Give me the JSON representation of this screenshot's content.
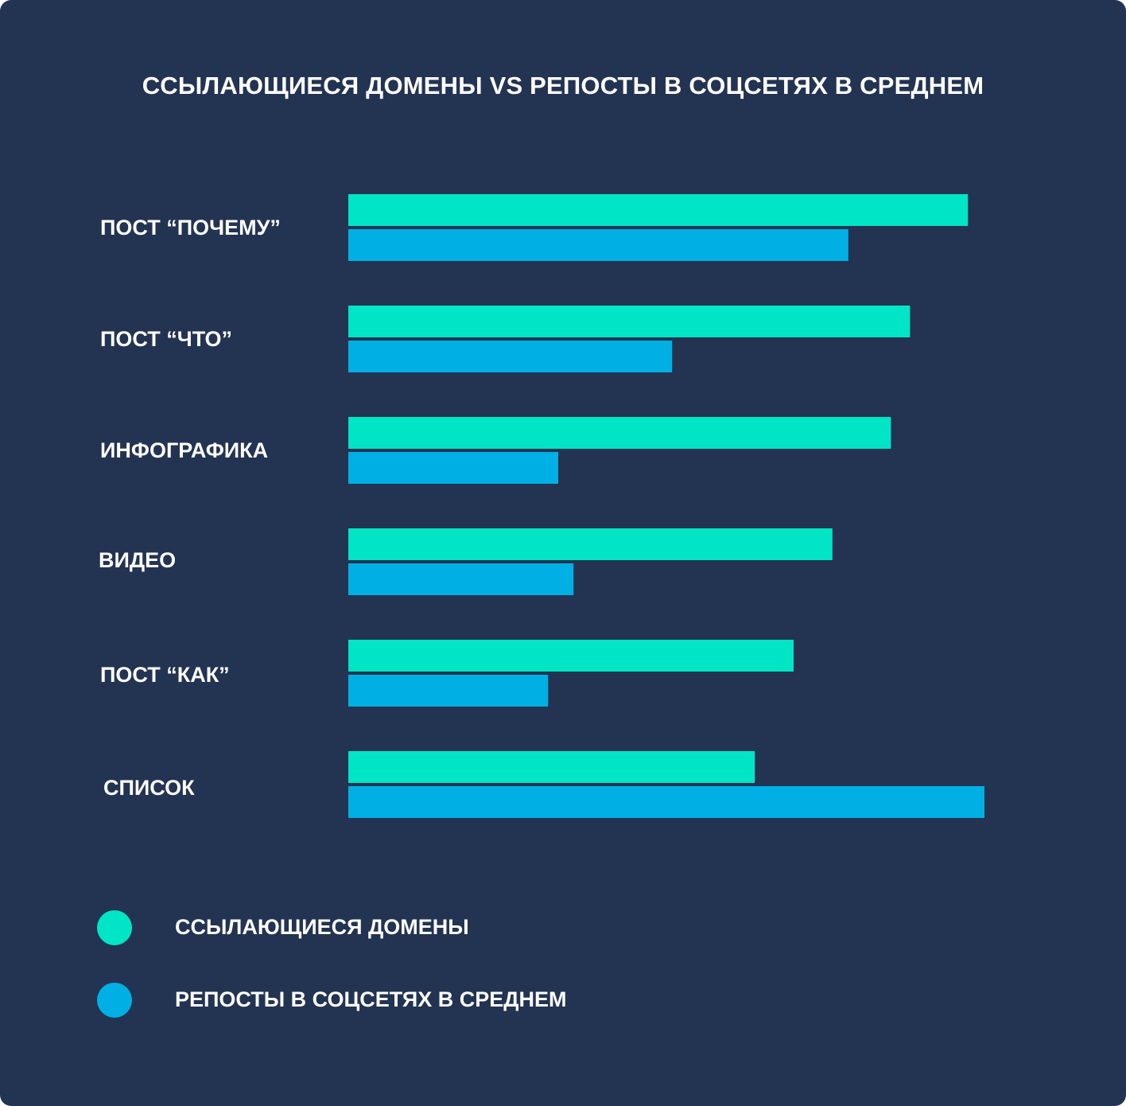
{
  "chart_data": {
    "type": "bar",
    "orientation": "horizontal",
    "title": "ССЫЛАЮЩИЕСЯ ДОМЕНЫ VS РЕПОСТЫ В СОЦСЕТЯХ В СРЕДНЕМ",
    "categories": [
      "ПОСТ “ПОЧЕМУ”",
      "ПОСТ “ЧТО”",
      "ИНФОГРАФИКА",
      "ВИДЕО",
      "ПОСТ “КАК”",
      "СПИСОК"
    ],
    "series": [
      {
        "name": "ССЫЛАЮЩИЕСЯ ДОМЕНЫ",
        "color": "#00E5C5",
        "values": [
          97.4,
          88.3,
          85.3,
          76.1,
          70.0,
          63.9
        ]
      },
      {
        "name": "РЕПОСТЫ В СОЦСЕТЯХ В СРЕДНЕМ",
        "color": "#00B0E4",
        "values": [
          78.6,
          50.9,
          33.0,
          35.4,
          31.4,
          100.0
        ]
      }
    ],
    "xlim": [
      0,
      100
    ],
    "grid": false,
    "legend_position": "bottom-left",
    "background": "#233352"
  }
}
